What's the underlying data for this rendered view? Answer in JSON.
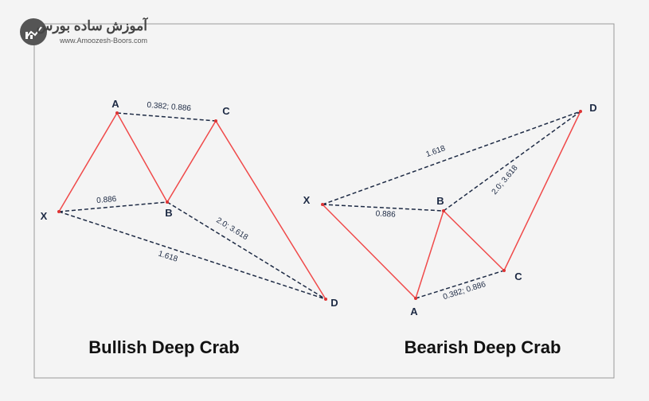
{
  "logo": {
    "name": "آموزش ساده بورس",
    "url": "www.Amoozesh-Boors.com"
  },
  "diagrams": [
    {
      "title": "Bullish Deep Crab",
      "points": [
        "X",
        "A",
        "B",
        "C",
        "D"
      ],
      "ratios": {
        "xb": "0.886",
        "ac": "0.382; 0.886",
        "bd": "2.0; 3.618",
        "xd": "1.618"
      }
    },
    {
      "title": "Bearish Deep Crab",
      "points": [
        "X",
        "A",
        "B",
        "C",
        "D"
      ],
      "ratios": {
        "xb": "0.886",
        "ac": "0.382; 0.886",
        "bd": "2.0; 3.618",
        "xd": "1.618"
      }
    }
  ]
}
